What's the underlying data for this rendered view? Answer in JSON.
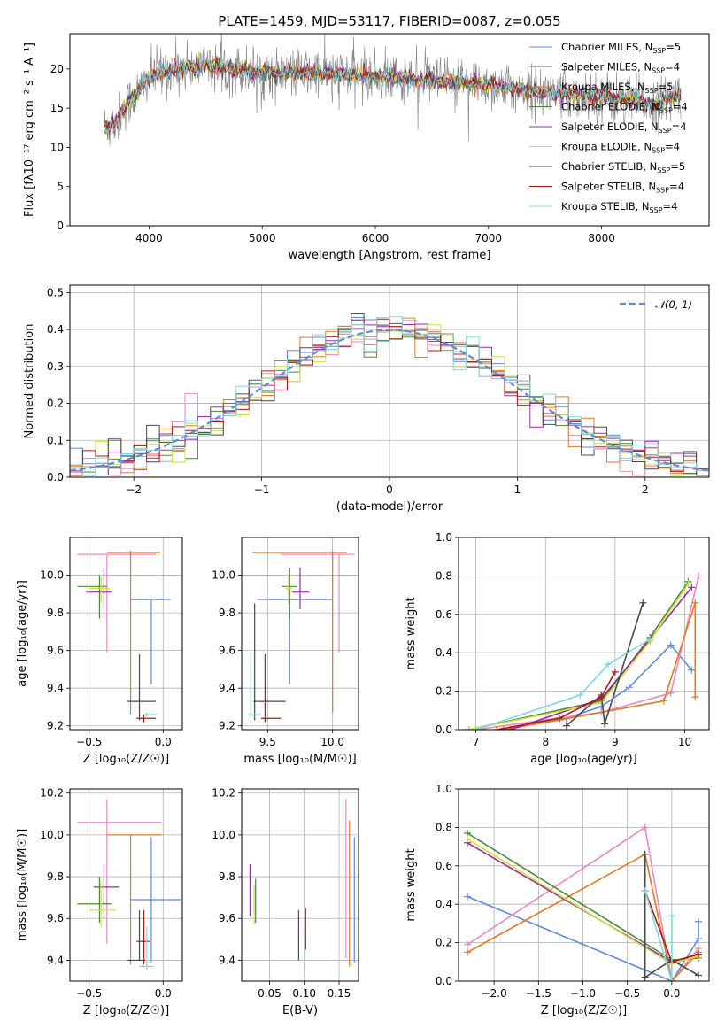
{
  "figure_title": "PLATE=1459, MJD=53117, FIBERID=0087, z=0.055",
  "series": [
    {
      "name": "Chabrier MILES",
      "nssp": "5",
      "color": "#5f8bd6"
    },
    {
      "name": "Salpeter MILES",
      "nssp": "4",
      "color": "#e78ac3"
    },
    {
      "name": "Kroupa MILES",
      "nssp": "5",
      "color": "#e6781e"
    },
    {
      "name": "Chabrier ELODIE",
      "nssp": "4",
      "color": "#4a8a3a"
    },
    {
      "name": "Salpeter ELODIE",
      "nssp": "4",
      "color": "#9a2aa8"
    },
    {
      "name": "Kroupa ELODIE",
      "nssp": "4",
      "color": "#cfe03a"
    },
    {
      "name": "Chabrier STELIB",
      "nssp": "5",
      "color": "#4a4a4a"
    },
    {
      "name": "Salpeter STELIB",
      "nssp": "4",
      "color": "#b01818"
    },
    {
      "name": "Kroupa STELIB",
      "nssp": "4",
      "color": "#7fd8e0"
    }
  ],
  "chart_data": [
    {
      "id": "spectrum",
      "type": "line",
      "xlabel": "wavelength [Angstrom, rest frame]",
      "ylabel": "Flux [fλ10⁻¹⁷ erg cm⁻² s⁻¹ A⁻¹]",
      "xlim": [
        3300,
        8950
      ],
      "ylim": [
        0,
        24.5
      ],
      "xticks": [
        4000,
        5000,
        6000,
        7000,
        8000
      ],
      "yticks": [
        0,
        5,
        10,
        15,
        20
      ],
      "grid": false,
      "legend": "upper right",
      "legend_suffix": ", N",
      "legend_sub": "SSP",
      "legend_eq": "=",
      "data_line": {
        "color": "#808080"
      },
      "continuum": [
        [
          3600,
          12.5
        ],
        [
          3700,
          13.0
        ],
        [
          3800,
          15.5
        ],
        [
          3900,
          17.0
        ],
        [
          4000,
          19.0
        ],
        [
          4200,
          20.0
        ],
        [
          4500,
          20.5
        ],
        [
          5000,
          19.5
        ],
        [
          5500,
          19.5
        ],
        [
          6000,
          19.0
        ],
        [
          6500,
          18.5
        ],
        [
          7000,
          18.0
        ],
        [
          7500,
          17.0
        ],
        [
          8000,
          16.5
        ],
        [
          8500,
          15.5
        ],
        [
          8700,
          17.0
        ]
      ]
    },
    {
      "id": "residuals",
      "type": "histogram",
      "xlabel": "(data-model)/error",
      "ylabel": "Normed distribution",
      "xlim": [
        -2.5,
        2.5
      ],
      "ylim": [
        0,
        0.52
      ],
      "xticks": [
        -2,
        -1,
        0,
        1,
        2
      ],
      "yticks": [
        0.0,
        0.1,
        0.2,
        0.3,
        0.4,
        0.5
      ],
      "grid": true,
      "legend": "upper right",
      "reference": {
        "label": "𝒩(0, 1)",
        "mean": 0,
        "sigma": 1,
        "color": "#5f8bd6"
      },
      "bin_width": 0.1,
      "bins": [
        -2.5,
        2.5
      ]
    },
    {
      "id": "age_vs_Z",
      "type": "errorbar",
      "xlabel": "Z [log₁₀(Z/Z☉)]",
      "ylabel": "age  [log₁₀(age/yr)]",
      "xlim": [
        -0.63,
        0.13
      ],
      "ylim": [
        9.18,
        10.2
      ],
      "xticks": [
        -0.5,
        0.0
      ],
      "yticks": [
        9.2,
        9.4,
        9.6,
        9.8,
        10.0
      ],
      "grid": true,
      "points": [
        {
          "x": -0.08,
          "y": 9.87,
          "xlo": -0.22,
          "xhi": 0.05,
          "ylo": 9.42,
          "yhi": 9.87
        },
        {
          "x": -0.38,
          "y": 10.11,
          "xlo": -0.58,
          "xhi": -0.05,
          "ylo": 9.59,
          "yhi": 10.11
        },
        {
          "x": -0.22,
          "y": 10.12,
          "xlo": -0.38,
          "xhi": -0.02,
          "ylo": 9.26,
          "yhi": 10.13
        },
        {
          "x": -0.43,
          "y": 9.94,
          "xlo": -0.58,
          "xhi": -0.38,
          "ylo": 9.77,
          "yhi": 10.0
        },
        {
          "x": -0.4,
          "y": 9.91,
          "xlo": -0.52,
          "xhi": -0.35,
          "ylo": 9.82,
          "yhi": 10.04
        },
        {
          "x": -0.42,
          "y": 9.93,
          "xlo": -0.5,
          "xhi": -0.36,
          "ylo": 9.85,
          "yhi": 9.99
        },
        {
          "x": -0.16,
          "y": 9.33,
          "xlo": -0.24,
          "xhi": -0.05,
          "ylo": 9.23,
          "yhi": 9.58
        },
        {
          "x": -0.13,
          "y": 9.24,
          "xlo": -0.18,
          "xhi": -0.05,
          "ylo": 9.22,
          "yhi": 9.26
        },
        {
          "x": -0.11,
          "y": 9.26,
          "xlo": -0.14,
          "xhi": -0.04,
          "ylo": 9.24,
          "yhi": 9.27
        }
      ]
    },
    {
      "id": "age_vs_mass",
      "type": "errorbar",
      "xlabel": "mass [log₁₀(M/M☉)]",
      "ylabel": "",
      "xlim": [
        9.3,
        10.2
      ],
      "ylim": [
        9.18,
        10.2
      ],
      "xticks": [
        9.5,
        10.0
      ],
      "yticks": [
        9.2,
        9.4,
        9.6,
        9.8,
        10.0
      ],
      "grid": true,
      "points": [
        {
          "x": 9.67,
          "y": 9.87,
          "xlo": 9.42,
          "xhi": 10.0,
          "ylo": 9.42,
          "yhi": 9.87
        },
        {
          "x": 10.05,
          "y": 10.11,
          "xlo": 9.6,
          "xhi": 10.17,
          "ylo": 9.59,
          "yhi": 10.11
        },
        {
          "x": 10.0,
          "y": 10.12,
          "xlo": 9.38,
          "xhi": 10.11,
          "ylo": 9.27,
          "yhi": 10.13
        },
        {
          "x": 9.67,
          "y": 9.94,
          "xlo": 9.61,
          "xhi": 9.73,
          "ylo": 9.77,
          "yhi": 10.04
        },
        {
          "x": 9.75,
          "y": 9.91,
          "xlo": 9.69,
          "xhi": 9.82,
          "ylo": 9.82,
          "yhi": 10.04
        },
        {
          "x": 9.66,
          "y": 9.93,
          "xlo": 9.64,
          "xhi": 9.69,
          "ylo": 9.85,
          "yhi": 10.0
        },
        {
          "x": 9.4,
          "y": 9.33,
          "xlo": 9.39,
          "xhi": 9.64,
          "ylo": 9.23,
          "yhi": 9.85
        },
        {
          "x": 9.48,
          "y": 9.24,
          "xlo": 9.45,
          "xhi": 9.6,
          "ylo": 9.22,
          "yhi": 9.58
        },
        {
          "x": 9.37,
          "y": 9.26,
          "xlo": 9.35,
          "xhi": 9.45,
          "ylo": 9.24,
          "yhi": 9.59
        }
      ]
    },
    {
      "id": "weight_vs_age",
      "type": "line",
      "xlabel": "age  [log₁₀(age/yr)]",
      "ylabel": "mass weight",
      "xlim": [
        6.75,
        10.35
      ],
      "ylim": [
        0,
        1.0
      ],
      "xticks": [
        7,
        8,
        9,
        10
      ],
      "yticks": [
        0.0,
        0.2,
        0.4,
        0.6,
        0.8,
        1.0
      ],
      "grid": true,
      "lines": [
        [
          [
            7.4,
            0.0
          ],
          [
            8.3,
            0.06
          ],
          [
            8.8,
            0.12
          ],
          [
            9.2,
            0.22
          ],
          [
            9.8,
            0.44
          ],
          [
            10.1,
            0.31
          ]
        ],
        [
          [
            7.0,
            0.0
          ],
          [
            8.0,
            0.05
          ],
          [
            8.8,
            0.09
          ],
          [
            9.8,
            0.19
          ],
          [
            10.2,
            0.8
          ]
        ],
        [
          [
            7.4,
            0.0
          ],
          [
            8.2,
            0.05
          ],
          [
            9.7,
            0.15
          ],
          [
            10.15,
            0.66
          ],
          [
            10.15,
            0.17
          ]
        ],
        [
          [
            6.9,
            0.0
          ],
          [
            8.8,
            0.15
          ],
          [
            9.5,
            0.48
          ],
          [
            10.05,
            0.77
          ]
        ],
        [
          [
            7.5,
            0.0
          ],
          [
            8.8,
            0.16
          ],
          [
            9.5,
            0.47
          ],
          [
            10.1,
            0.74
          ]
        ],
        [
          [
            6.9,
            0.0
          ],
          [
            8.8,
            0.14
          ],
          [
            9.5,
            0.46
          ],
          [
            10.05,
            0.76
          ]
        ],
        [
          [
            8.3,
            0.02
          ],
          [
            8.8,
            0.18
          ],
          [
            8.85,
            0.03
          ],
          [
            9.4,
            0.66
          ]
        ],
        [
          [
            7.3,
            0.0
          ],
          [
            8.2,
            0.06
          ],
          [
            8.8,
            0.17
          ],
          [
            9.0,
            0.3
          ]
        ],
        [
          [
            7.0,
            0.0
          ],
          [
            8.5,
            0.18
          ],
          [
            8.9,
            0.34
          ],
          [
            9.5,
            0.47
          ]
        ]
      ]
    },
    {
      "id": "mass_vs_Z",
      "type": "errorbar",
      "xlabel": "Z [log₁₀(Z/Z☉)]",
      "ylabel": "mass [log₁₀(M/M☉)]",
      "xlim": [
        -0.63,
        0.13
      ],
      "ylim": [
        9.3,
        10.22
      ],
      "xticks": [
        -0.5,
        0.0
      ],
      "yticks": [
        9.4,
        9.6,
        9.8,
        10.0,
        10.2
      ],
      "grid": true,
      "points": [
        {
          "x": -0.08,
          "y": 9.69,
          "xlo": -0.22,
          "xhi": 0.12,
          "ylo": 9.39,
          "yhi": 9.99
        },
        {
          "x": -0.38,
          "y": 10.06,
          "xlo": -0.58,
          "xhi": -0.01,
          "ylo": 9.48,
          "yhi": 10.17
        },
        {
          "x": -0.22,
          "y": 10.0,
          "xlo": -0.38,
          "xhi": -0.01,
          "ylo": 9.38,
          "yhi": 10.0
        },
        {
          "x": -0.43,
          "y": 9.67,
          "xlo": -0.58,
          "xhi": -0.35,
          "ylo": 9.58,
          "yhi": 9.8
        },
        {
          "x": -0.4,
          "y": 9.75,
          "xlo": -0.47,
          "xhi": -0.3,
          "ylo": 9.6,
          "yhi": 9.86
        },
        {
          "x": -0.42,
          "y": 9.64,
          "xlo": -0.5,
          "xhi": -0.32,
          "ylo": 9.56,
          "yhi": 9.78
        },
        {
          "x": -0.16,
          "y": 9.4,
          "xlo": -0.24,
          "xhi": -0.12,
          "ylo": 9.4,
          "yhi": 9.64
        },
        {
          "x": -0.13,
          "y": 9.49,
          "xlo": -0.18,
          "xhi": -0.09,
          "ylo": 9.38,
          "yhi": 9.64
        },
        {
          "x": -0.11,
          "y": 9.37,
          "xlo": -0.16,
          "xhi": -0.06,
          "ylo": 9.35,
          "yhi": 9.56
        }
      ]
    },
    {
      "id": "mass_vs_EBV",
      "type": "errorbar",
      "xlabel": "E(B-V)",
      "ylabel": "",
      "xlim": [
        0.01,
        0.178
      ],
      "ylim": [
        9.3,
        10.22
      ],
      "xticks": [
        0.05,
        0.1,
        0.15
      ],
      "yticks": [
        9.4,
        9.6,
        9.8,
        10.0,
        10.2
      ],
      "grid": true,
      "points": [
        {
          "x": 0.172,
          "y": 9.69,
          "xlo": 0.172,
          "xhi": 0.172,
          "ylo": 9.39,
          "yhi": 9.99
        },
        {
          "x": 0.16,
          "y": 9.8,
          "xlo": 0.16,
          "xhi": 0.16,
          "ylo": 9.41,
          "yhi": 10.17
        },
        {
          "x": 0.165,
          "y": 9.72,
          "xlo": 0.165,
          "xhi": 0.165,
          "ylo": 9.37,
          "yhi": 10.07
        },
        {
          "x": 0.03,
          "y": 9.67,
          "xlo": 0.03,
          "xhi": 0.03,
          "ylo": 9.58,
          "yhi": 9.79
        },
        {
          "x": 0.022,
          "y": 9.72,
          "xlo": 0.022,
          "xhi": 0.022,
          "ylo": 9.61,
          "yhi": 9.86
        },
        {
          "x": 0.028,
          "y": 9.65,
          "xlo": 0.028,
          "xhi": 0.028,
          "ylo": 9.57,
          "yhi": 9.76
        },
        {
          "x": 0.092,
          "y": 9.5,
          "xlo": 0.092,
          "xhi": 0.092,
          "ylo": 9.4,
          "yhi": 9.64
        },
        {
          "x": 0.102,
          "y": 9.55,
          "xlo": 0.102,
          "xhi": 0.102,
          "ylo": 9.45,
          "yhi": 9.65
        },
        {
          "x": 0.1,
          "y": 9.45,
          "xlo": 0.1,
          "xhi": 0.1,
          "ylo": 9.35,
          "yhi": 9.55
        }
      ]
    },
    {
      "id": "weight_vs_Z",
      "type": "line",
      "xlabel": "Z [log₁₀(Z/Z☉)]",
      "ylabel": "mass weight",
      "xlim": [
        -2.4,
        0.42
      ],
      "ylim": [
        0,
        1.0
      ],
      "xticks": [
        -2.0,
        -1.5,
        -1.0,
        -0.5,
        0.0
      ],
      "yticks": [
        0.0,
        0.2,
        0.4,
        0.6,
        0.8,
        1.0
      ],
      "grid": true,
      "lines": [
        [
          [
            -2.3,
            0.44
          ],
          [
            0.0,
            0.0
          ],
          [
            0.3,
            0.22
          ],
          [
            0.3,
            0.31
          ]
        ],
        [
          [
            -2.3,
            0.19
          ],
          [
            -0.3,
            0.8
          ],
          [
            0.0,
            0.0
          ],
          [
            0.3,
            0.17
          ]
        ],
        [
          [
            -2.3,
            0.15
          ],
          [
            -0.3,
            0.66
          ],
          [
            0.0,
            0.0
          ],
          [
            0.3,
            0.15
          ]
        ],
        [
          [
            -2.3,
            0.77
          ],
          [
            0.0,
            0.11
          ],
          [
            0.3,
            0.12
          ]
        ],
        [
          [
            -2.3,
            0.72
          ],
          [
            0.0,
            0.1
          ],
          [
            0.3,
            0.14
          ]
        ],
        [
          [
            -2.3,
            0.74
          ],
          [
            0.0,
            0.09
          ],
          [
            0.3,
            0.13
          ]
        ],
        [
          [
            -0.3,
            0.66
          ],
          [
            -0.3,
            0.02
          ],
          [
            0.0,
            0.11
          ],
          [
            0.3,
            0.03
          ]
        ],
        [
          [
            -0.3,
            0.47
          ],
          [
            0.0,
            0.1
          ],
          [
            0.3,
            0.14
          ]
        ],
        [
          [
            -0.3,
            0.47
          ],
          [
            0.0,
            0.0
          ],
          [
            0.0,
            0.34
          ]
        ]
      ]
    }
  ]
}
